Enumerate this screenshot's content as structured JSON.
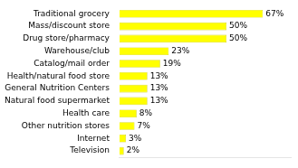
{
  "chart_data": {
    "type": "bar",
    "orientation": "horizontal",
    "categories": [
      "Television",
      "Internet",
      "Other nutrition stores",
      "Health care",
      "Natural food supermarket",
      "General Nutrition Centers",
      "Health/natural food store",
      "Catalog/mail order",
      "Warehouse/club",
      "Drug store/pharmacy",
      "Mass/discount store",
      "Traditional grocery"
    ],
    "values": [
      2,
      3,
      7,
      8,
      13,
      13,
      13,
      19,
      23,
      50,
      50,
      67
    ],
    "value_labels": [
      "2%",
      "3%",
      "7%",
      "8%",
      "13%",
      "13%",
      "13%",
      "19%",
      "23%",
      "50%",
      "50%",
      "67%"
    ],
    "data_labels": true,
    "color": "#ffff00",
    "xlim": [
      0,
      80
    ],
    "grid": false,
    "tick_labels": "y"
  }
}
